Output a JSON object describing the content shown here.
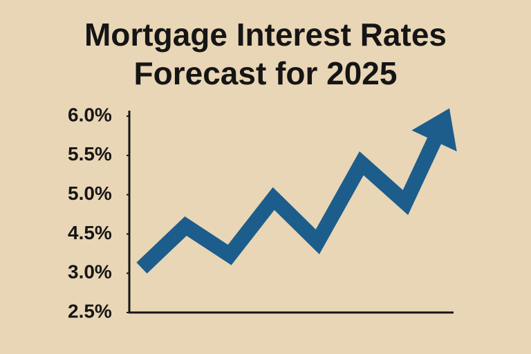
{
  "chart_data": {
    "type": "line",
    "title": "Mortgage Interest Rates Forecast for 2025",
    "categories": [
      null,
      null,
      null,
      null,
      null,
      null,
      null,
      null
    ],
    "values": [
      3.2,
      4.6,
      3.7,
      4.95,
      4.2,
      5.4,
      4.9,
      6.1
    ],
    "color": "#1d5d8c",
    "ylim": [
      2.5,
      6.0
    ],
    "yticks": [
      {
        "value": 2.5,
        "label": "2.5%"
      },
      {
        "value": 3.0,
        "label": "3.0%"
      },
      {
        "value": 4.5,
        "label": "4.5%"
      },
      {
        "value": 5.0,
        "label": "5.0%"
      },
      {
        "value": 5.5,
        "label": "5.5%"
      },
      {
        "value": 6.0,
        "label": "6.0%"
      }
    ],
    "grid": false
  }
}
